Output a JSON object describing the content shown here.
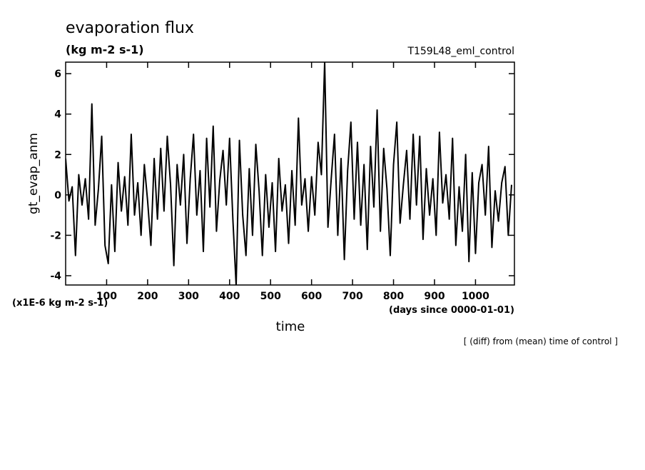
{
  "chart_data": {
    "type": "line",
    "title": "evaporation flux",
    "subtitle": "(kg m-2 s-1)",
    "experiment": "T159L48_eml_control",
    "y_label": "gt_evap_anm",
    "y_unit": "(x1E-6 kg m-2 s-1)",
    "x_label": "time",
    "x_unit": "(days since 0000-01-01)",
    "note": "[ (diff) from (mean) time of control ]",
    "xlim": [
      0,
      1095
    ],
    "ylim": [
      -4.46,
      6.57
    ],
    "xticks": [
      100,
      200,
      300,
      400,
      500,
      600,
      700,
      800,
      900,
      1000
    ],
    "yticks": [
      -4,
      -2,
      0,
      2,
      4,
      6
    ],
    "x": [
      0,
      8,
      16,
      24,
      32,
      40,
      48,
      56,
      64,
      72,
      80,
      88,
      96,
      104,
      112,
      120,
      128,
      136,
      144,
      152,
      160,
      168,
      176,
      184,
      192,
      200,
      208,
      216,
      224,
      232,
      240,
      248,
      256,
      264,
      272,
      280,
      288,
      296,
      304,
      312,
      320,
      328,
      336,
      344,
      352,
      360,
      368,
      376,
      384,
      392,
      400,
      408,
      416,
      424,
      432,
      440,
      448,
      456,
      464,
      472,
      480,
      488,
      496,
      504,
      512,
      520,
      528,
      536,
      544,
      552,
      560,
      568,
      576,
      584,
      592,
      600,
      608,
      616,
      624,
      632,
      640,
      648,
      656,
      664,
      672,
      680,
      688,
      696,
      704,
      712,
      720,
      728,
      736,
      744,
      752,
      760,
      768,
      776,
      784,
      792,
      800,
      808,
      816,
      824,
      832,
      840,
      848,
      856,
      864,
      872,
      880,
      888,
      896,
      904,
      912,
      920,
      928,
      936,
      944,
      952,
      960,
      968,
      976,
      984,
      992,
      1000,
      1008,
      1016,
      1024,
      1032,
      1040,
      1048,
      1056,
      1064,
      1072,
      1080,
      1088
    ],
    "series": [
      {
        "name": "gt_evap_anm",
        "color": "#000000",
        "values": [
          1.8,
          -0.3,
          0.4,
          -3.0,
          1.0,
          -0.5,
          0.8,
          -1.2,
          4.5,
          -1.5,
          0.3,
          2.9,
          -2.5,
          -3.4,
          0.5,
          -2.8,
          1.6,
          -0.8,
          0.9,
          -1.5,
          3.0,
          -1.0,
          0.6,
          -2.0,
          1.5,
          -0.3,
          -2.5,
          1.8,
          -1.2,
          2.3,
          -0.8,
          2.9,
          0.5,
          -3.5,
          1.5,
          -0.5,
          2.0,
          -2.4,
          0.8,
          3.0,
          -1.0,
          1.2,
          -2.8,
          2.8,
          -0.6,
          3.4,
          -1.8,
          0.7,
          2.2,
          -0.5,
          2.8,
          -1.2,
          -4.5,
          2.7,
          -1.0,
          -3.0,
          1.3,
          -2.0,
          2.5,
          0.2,
          -3.0,
          1.0,
          -1.6,
          0.6,
          -2.8,
          1.8,
          -0.8,
          0.5,
          -2.4,
          1.2,
          -1.5,
          3.8,
          -0.5,
          0.8,
          -1.8,
          0.9,
          -1.0,
          2.6,
          1.0,
          6.6,
          -1.6,
          0.8,
          3.0,
          -2.0,
          1.8,
          -3.2,
          1.2,
          3.6,
          -1.2,
          2.6,
          -1.5,
          1.5,
          -2.7,
          2.4,
          -0.6,
          4.2,
          -1.8,
          2.3,
          0.3,
          -3.0,
          1.5,
          3.6,
          -1.4,
          0.5,
          2.2,
          -1.2,
          3.0,
          -0.5,
          2.9,
          -2.2,
          1.3,
          -1.0,
          0.8,
          -2.0,
          3.1,
          -0.4,
          1.0,
          -1.2,
          2.8,
          -2.5,
          0.4,
          -1.8,
          2.0,
          -3.3,
          1.1,
          -2.9,
          0.6,
          1.5,
          -1.0,
          2.4,
          -2.6,
          0.2,
          -1.3,
          0.6,
          1.4,
          -2.0,
          0.5
        ]
      }
    ]
  }
}
